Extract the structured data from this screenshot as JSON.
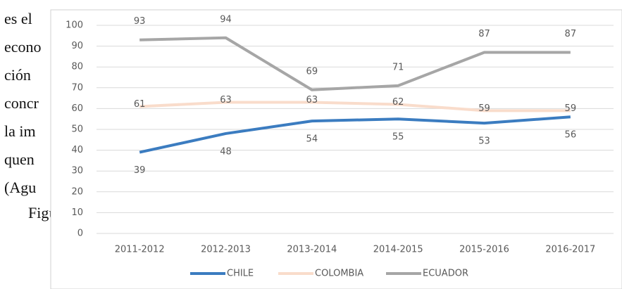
{
  "document": {
    "lines": [
      "es el",
      "econo",
      "ción",
      "concr",
      "la im",
      "quen",
      "(Agu",
      "Figu"
    ]
  },
  "chart_data": {
    "type": "line",
    "categories": [
      "2011-2012",
      "2012-2013",
      "2013-2014",
      "2014-2015",
      "2015-2016",
      "2016-2017"
    ],
    "series": [
      {
        "name": "CHILE",
        "color": "#3b7cc0",
        "values": [
          39,
          48,
          54,
          55,
          53,
          56
        ]
      },
      {
        "name": "COLOMBIA",
        "color": "#f9dccb",
        "values": [
          61,
          63,
          63,
          62,
          59,
          59
        ]
      },
      {
        "name": "ECUADOR",
        "color": "#a6a6a6",
        "values": [
          93,
          94,
          69,
          71,
          87,
          87
        ]
      }
    ],
    "ylim": [
      0,
      100
    ],
    "yticks": [
      0,
      10,
      20,
      30,
      40,
      50,
      60,
      70,
      80,
      90,
      100
    ],
    "grid": true,
    "legend": "bottom"
  }
}
